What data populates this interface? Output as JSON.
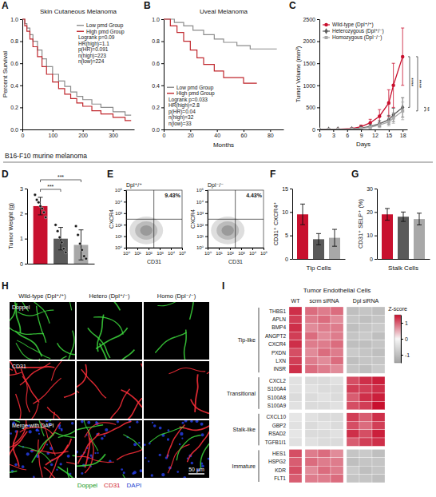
{
  "banner": "B16-F10 murine melanoma",
  "chart_data": [
    {
      "type": "line",
      "panel": "A",
      "title": "Skin Cutaneous Melanoma",
      "y_label": "Percent Survival",
      "xlim": [
        0,
        370
      ],
      "ylim": [
        0,
        1
      ],
      "xticks": [
        0,
        100,
        200,
        300
      ],
      "yticks": [
        {
          "value": 0,
          "label": "0.0"
        },
        0.2,
        0.4,
        0.6,
        0.8,
        {
          "value": 1,
          "label": "1.0"
        }
      ],
      "line_style": "step",
      "legend": "top-right",
      "annotations": [
        "Logrank p=0.09",
        "HR(high)=1.1",
        "p(HR)=0.091",
        "n(high)=223",
        "n(low)=224"
      ],
      "series": [
        {
          "name": "Low pmd Group",
          "color": "#8c8c8c",
          "x": [
            0,
            8,
            15,
            25,
            35,
            50,
            65,
            80,
            100,
            120,
            140,
            160,
            180,
            200,
            230,
            260,
            300,
            340,
            360
          ],
          "values": [
            1,
            0.96,
            0.92,
            0.86,
            0.8,
            0.72,
            0.64,
            0.57,
            0.5,
            0.44,
            0.39,
            0.34,
            0.3,
            0.27,
            0.23,
            0.2,
            0.16,
            0.13,
            0.13
          ]
        },
        {
          "name": "High pmd Group",
          "color": "#c0272d",
          "x": [
            0,
            8,
            15,
            25,
            35,
            50,
            65,
            80,
            100,
            120,
            140,
            160,
            180,
            200,
            230,
            260,
            300,
            340,
            360
          ],
          "values": [
            1,
            0.94,
            0.89,
            0.82,
            0.75,
            0.66,
            0.57,
            0.5,
            0.43,
            0.37,
            0.32,
            0.28,
            0.24,
            0.21,
            0.17,
            0.14,
            0.11,
            0.08,
            0.08
          ]
        }
      ]
    },
    {
      "type": "line",
      "panel": "B",
      "title": "Uveal Melanoma",
      "x_label": "Months",
      "xlim": [
        0,
        90
      ],
      "ylim": [
        0,
        1
      ],
      "xticks": [
        0,
        20,
        40,
        60,
        80
      ],
      "yticks": [
        {
          "value": 0,
          "label": "0.0"
        },
        0.2,
        0.4,
        0.6,
        0.8,
        {
          "value": 1,
          "label": "1.0"
        }
      ],
      "line_style": "step",
      "legend": "bottom-left",
      "annotations": [
        "Logrank p=0.033",
        "HR(high)=2.8",
        "p(HR)=0.04",
        "n(high)=32",
        "n(low)=33"
      ],
      "series": [
        {
          "name": "Low pmd Group",
          "color": "#8c8c8c",
          "x": [
            0,
            8,
            15,
            22,
            30,
            38,
            45,
            55,
            65,
            85
          ],
          "values": [
            1,
            0.97,
            0.94,
            0.9,
            0.86,
            0.82,
            0.79,
            0.76,
            0.73,
            0.73
          ]
        },
        {
          "name": "High pmd Group",
          "color": "#c0272d",
          "x": [
            0,
            5,
            10,
            15,
            20,
            25,
            30,
            38,
            45,
            60,
            70
          ],
          "values": [
            1,
            0.94,
            0.88,
            0.8,
            0.72,
            0.65,
            0.59,
            0.53,
            0.47,
            0.42,
            0.42
          ]
        }
      ]
    },
    {
      "type": "line",
      "panel": "C",
      "x_label": "Days",
      "y_label": "Tumor Volume (mm³)",
      "xlim": [
        0,
        19
      ],
      "ylim": [
        0,
        2500
      ],
      "xticks": [
        0,
        3,
        6,
        9,
        12,
        15,
        18
      ],
      "yticks": [
        0,
        500,
        1000,
        1500,
        2000,
        2500
      ],
      "legend": "top-left",
      "x": [
        0,
        2,
        4,
        7,
        9,
        11,
        13,
        15,
        16,
        18
      ],
      "series": [
        {
          "name": "Wild-type (Dpl⁺/⁺)",
          "color": "#c8102e",
          "marker": "circle",
          "values": [
            0,
            0,
            5,
            20,
            60,
            150,
            300,
            600,
            1000,
            1650
          ],
          "errors": [
            0,
            0,
            5,
            15,
            40,
            80,
            150,
            300,
            500,
            650
          ]
        },
        {
          "name": "Heterozygous (Dpl⁺/⁻)",
          "color": "#5a5a5a",
          "marker": "diamond",
          "values": [
            0,
            0,
            3,
            10,
            30,
            70,
            130,
            220,
            330,
            500
          ],
          "errors": [
            0,
            0,
            3,
            8,
            20,
            40,
            70,
            100,
            150,
            220
          ]
        },
        {
          "name": "Homozygous (Dpl⁻/⁻)",
          "color": "#a8a8a8",
          "marker": "square",
          "values": [
            0,
            0,
            2,
            8,
            20,
            50,
            100,
            170,
            260,
            420
          ],
          "errors": [
            0,
            0,
            2,
            6,
            15,
            30,
            60,
            90,
            120,
            200
          ]
        }
      ],
      "annotations": [
        "****",
        "****",
        "**"
      ]
    },
    {
      "type": "bar",
      "panel": "D",
      "y_label": "Tumor Weight (g)",
      "categories": [
        null,
        null,
        null
      ],
      "values": [
        2.3,
        1.0,
        0.75
      ],
      "errors": [
        0.35,
        0.45,
        0.6
      ],
      "points": [
        [
          2.75,
          2.55,
          2.45,
          2.3,
          2.2,
          2.05,
          1.85
        ],
        [
          1.55,
          1.3,
          1.05,
          0.85,
          0.6,
          0.45
        ],
        [
          1.5,
          1.15,
          0.8,
          0.55,
          0.3,
          0.2
        ]
      ],
      "colors": [
        "#c8102e",
        "#5a5a5a",
        "#a8a8a8"
      ],
      "ylim": [
        0,
        3
      ],
      "yticks": [
        0,
        1,
        2,
        3
      ],
      "tick_labels": "y",
      "annotations": [
        "***",
        "***"
      ]
    },
    {
      "type": "flow_cytometry",
      "panel": "E",
      "x_label": "CD31",
      "y_label": "CXCR4",
      "log": true,
      "xlim": [
        1,
        100000
      ],
      "ylim": [
        1,
        100000
      ],
      "xticks": [
        {
          "value": 1,
          "label": "10⁰"
        },
        {
          "value": 10,
          "label": "10¹"
        },
        {
          "value": 100,
          "label": "10²"
        },
        {
          "value": 1000,
          "label": "10³"
        },
        {
          "value": 10000,
          "label": "10⁴"
        },
        {
          "value": 100000,
          "label": "10⁵"
        }
      ],
      "yticks": [
        {
          "value": 1,
          "label": "10⁰"
        },
        {
          "value": 10,
          "label": "10¹"
        },
        {
          "value": 100,
          "label": "10²"
        },
        {
          "value": 1000,
          "label": "10³"
        },
        {
          "value": 10000,
          "label": "10⁴"
        },
        {
          "value": 100000,
          "label": "10⁵"
        }
      ],
      "gate_x": 300,
      "gate_y": 300,
      "plots": [
        {
          "title": "Dpl⁺/⁺",
          "values": [
            9.43
          ],
          "value_labels": [
            "9.43%"
          ]
        },
        {
          "title": "Dpl⁻/⁻",
          "values": [
            4.43
          ],
          "value_labels": [
            "4.43%"
          ]
        }
      ]
    },
    {
      "type": "bar",
      "panel": "F",
      "x_label": "Tip Cells",
      "y_label": "CD31⁺ CXCR4⁺",
      "categories": [
        null,
        null,
        null
      ],
      "values": [
        9.5,
        4.2,
        4.5
      ],
      "errors": [
        2.2,
        1.2,
        1.8
      ],
      "colors": [
        "#c8102e",
        "#5a5a5a",
        "#a8a8a8"
      ],
      "ylim": [
        0,
        15
      ],
      "yticks": [
        0,
        5,
        10,
        15
      ],
      "tick_labels": "y"
    },
    {
      "type": "bar",
      "panel": "G",
      "x_label": "Stalk Cells",
      "y_label": "CD31⁺ SELP⁺ (%)",
      "categories": [
        null,
        null,
        null
      ],
      "values": [
        19,
        18,
        17
      ],
      "errors": [
        2.5,
        2,
        2.5
      ],
      "colors": [
        "#c8102e",
        "#5a5a5a",
        "#a8a8a8"
      ],
      "ylim": [
        0,
        30
      ],
      "yticks": [
        0,
        10,
        20,
        30
      ],
      "tick_labels": "y"
    },
    {
      "type": "heatmap",
      "panel": "I",
      "title": "Tumor Endothelial Cells",
      "column_groups": [
        "WT",
        "scrm siRNA",
        "Dpl siRNA"
      ],
      "column_group_sizes": [
        1,
        3,
        3
      ],
      "rows": [
        "THBS1",
        "APLN",
        "BMP4",
        "ANGPT2",
        "CXCR4",
        "PXDN",
        "LXN",
        "INSR",
        "CXCL2",
        "S100A4",
        "S100A8",
        "S100A9",
        "CXCL10",
        "GBP2",
        "RSAD2",
        "TGFB1I1",
        "HES1",
        "HSPG2",
        "KDR",
        "FLT1"
      ],
      "row_groups": [
        "Tip-like",
        "Transitional",
        "Stalk-like",
        "Immature"
      ],
      "row_group_sizes": [
        8,
        4,
        4,
        4
      ],
      "cells": [
        [
          1.3,
          0.9,
          0.8,
          0.9,
          -1.0,
          -0.9,
          -1.0
        ],
        [
          1.2,
          0.8,
          0.9,
          0.7,
          -0.9,
          -1.0,
          -0.9
        ],
        [
          1.3,
          0.7,
          0.8,
          0.8,
          -1.0,
          -0.9,
          -0.8
        ],
        [
          1.2,
          0.9,
          0.7,
          0.8,
          -0.9,
          -0.8,
          -1.0
        ],
        [
          1.3,
          0.8,
          0.8,
          0.9,
          -1.0,
          -1.0,
          -0.9
        ],
        [
          1.1,
          0.7,
          0.9,
          0.8,
          -0.8,
          -0.9,
          -1.0
        ],
        [
          1.2,
          0.8,
          0.7,
          0.9,
          -1.0,
          -0.9,
          -0.9
        ],
        [
          1.3,
          0.9,
          0.8,
          0.7,
          -0.9,
          -1.0,
          -0.8
        ],
        [
          -0.4,
          -0.5,
          -0.5,
          -0.4,
          1.1,
          1.3,
          1.4
        ],
        [
          -0.4,
          -0.4,
          -0.5,
          -0.5,
          1.2,
          1.2,
          1.3
        ],
        [
          -0.5,
          -0.5,
          -0.4,
          -0.5,
          1.0,
          1.3,
          1.4
        ],
        [
          -0.4,
          -0.5,
          -0.5,
          -0.4,
          1.1,
          1.2,
          1.5
        ],
        [
          -0.3,
          -0.4,
          -0.5,
          -0.5,
          1.2,
          1.0,
          1.3
        ],
        [
          -0.4,
          -0.5,
          -0.4,
          -0.5,
          1.1,
          0.9,
          1.2
        ],
        [
          -0.3,
          -0.5,
          -0.5,
          -0.4,
          1.3,
          1.1,
          1.4
        ],
        [
          -0.4,
          -0.4,
          -0.5,
          -0.5,
          1.0,
          1.2,
          1.3
        ],
        [
          1.1,
          0.8,
          0.9,
          0.7,
          -0.9,
          -0.8,
          -1.0
        ],
        [
          1.0,
          0.9,
          0.8,
          0.8,
          -1.0,
          -0.9,
          -0.9
        ],
        [
          1.1,
          0.7,
          0.9,
          0.8,
          -0.8,
          -1.0,
          -0.9
        ],
        [
          1.0,
          0.8,
          0.8,
          0.9,
          -0.9,
          -0.9,
          -1.0
        ]
      ],
      "colorbar": {
        "title": "Z-score",
        "zlim": [
          -1.5,
          1.5
        ],
        "ticks": [
          1,
          0,
          -1
        ]
      }
    }
  ],
  "image_panel": {
    "panel": "H",
    "columns": [
      "Wild-type (Dpl⁺/⁺)",
      "Hetero (Dpl⁺/⁻)",
      "Homo (Dpl⁻/⁻)"
    ],
    "rows": [
      "Doppel",
      "CD31",
      "Merge with DAPI"
    ],
    "scale_bar": "50 μm",
    "channels": [
      "Doppel",
      "CD31",
      "DAPI"
    ]
  }
}
